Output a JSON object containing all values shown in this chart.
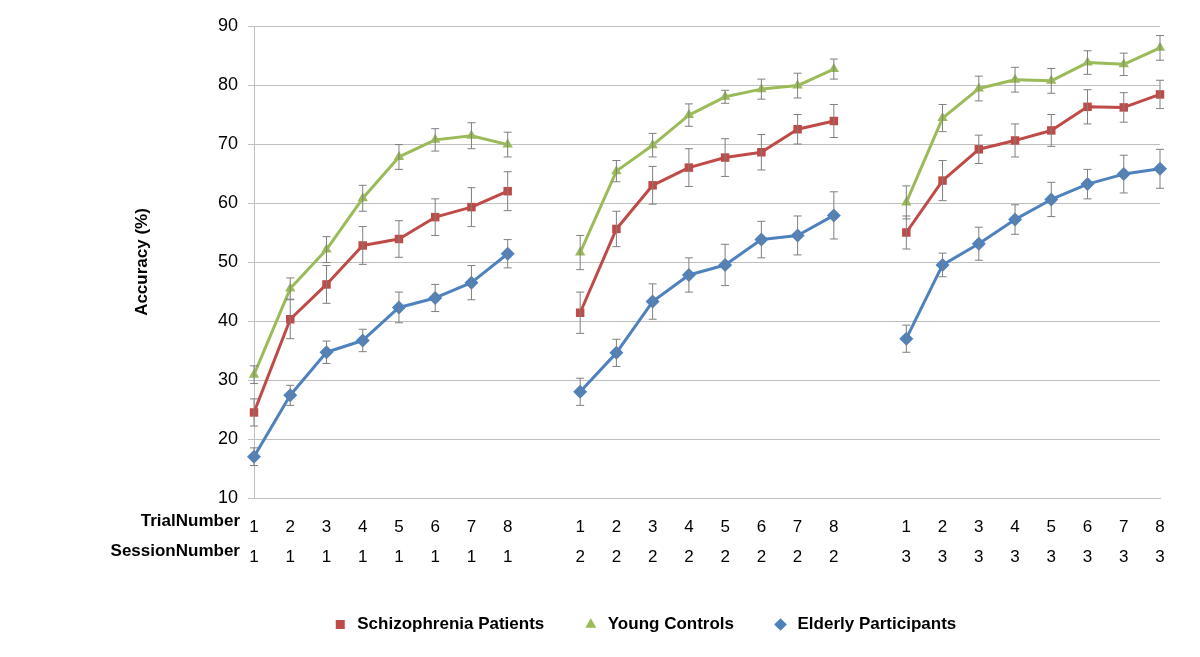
{
  "chart_data": {
    "type": "line",
    "ylabel": "Accuracy (%)",
    "categories": [
      "1\n1",
      "2\n1",
      "3\n1",
      "4\n1",
      "5\n1",
      "6\n1",
      "7\n1",
      "8\n1",
      null,
      "1\n2",
      "2\n2",
      "3\n2",
      "4\n2",
      "5\n2",
      "6\n2",
      "7\n2",
      "8\n2",
      null,
      "1\n3",
      "2\n3",
      "3\n3",
      "4\n3",
      "5\n3",
      "6\n3",
      "7\n3",
      "8\n3"
    ],
    "ylim": [
      10,
      90
    ],
    "yticks": [
      10,
      20,
      30,
      40,
      50,
      60,
      70,
      80,
      90
    ],
    "grid": "y",
    "legend": "bottom",
    "annotations": [
      "TrialNumber",
      "SessionNumber"
    ],
    "series": [
      {
        "name": "Schizophrenia Patients",
        "color": "#be4b48",
        "marker": "square",
        "values": [
          24.5,
          40.3,
          46.2,
          52.8,
          53.9,
          57.6,
          59.3,
          62.0,
          null,
          41.4,
          55.6,
          63.0,
          66.0,
          67.7,
          68.6,
          72.5,
          73.9,
          null,
          55.0,
          63.8,
          69.1,
          70.6,
          72.3,
          76.3,
          76.2,
          78.4
        ],
        "errors": [
          2.3,
          3.3,
          3.2,
          3.2,
          3.1,
          3.1,
          3.3,
          3.3,
          null,
          3.5,
          3.0,
          3.2,
          3.2,
          3.2,
          3.0,
          2.5,
          2.8,
          null,
          2.8,
          3.4,
          2.4,
          2.8,
          2.7,
          2.9,
          2.5,
          2.4
        ]
      },
      {
        "name": "Young Controls",
        "color": "#9bbb59",
        "marker": "triangle",
        "values": [
          30.9,
          45.5,
          52.1,
          60.8,
          67.8,
          70.7,
          71.4,
          69.9,
          null,
          51.6,
          65.4,
          69.8,
          74.9,
          78.0,
          79.3,
          79.9,
          82.7,
          null,
          60.1,
          74.4,
          79.4,
          80.9,
          80.7,
          83.8,
          83.5,
          86.3
        ],
        "errors": [
          1.5,
          1.8,
          2.2,
          2.2,
          2.1,
          1.9,
          2.2,
          2.1,
          null,
          2.9,
          1.8,
          2.0,
          1.9,
          1.1,
          1.7,
          2.1,
          1.7,
          null,
          2.8,
          2.3,
          2.1,
          2.1,
          2.1,
          2.0,
          1.9,
          2.1
        ]
      },
      {
        "name": "Elderly Participants",
        "color": "#4f81bd",
        "marker": "diamond",
        "values": [
          17.0,
          27.4,
          34.7,
          36.7,
          42.3,
          43.9,
          46.5,
          51.4,
          null,
          28.0,
          34.6,
          43.3,
          47.8,
          49.5,
          53.8,
          54.5,
          57.9,
          null,
          37.0,
          49.5,
          53.1,
          57.2,
          60.6,
          63.2,
          64.9,
          65.8
        ],
        "errors": [
          1.5,
          1.7,
          1.9,
          1.9,
          2.6,
          2.3,
          2.9,
          2.4,
          null,
          2.3,
          2.3,
          3.0,
          2.9,
          3.5,
          3.1,
          3.3,
          4.0,
          null,
          2.3,
          2.0,
          2.8,
          2.5,
          2.9,
          2.5,
          3.2,
          3.3
        ]
      }
    ]
  }
}
